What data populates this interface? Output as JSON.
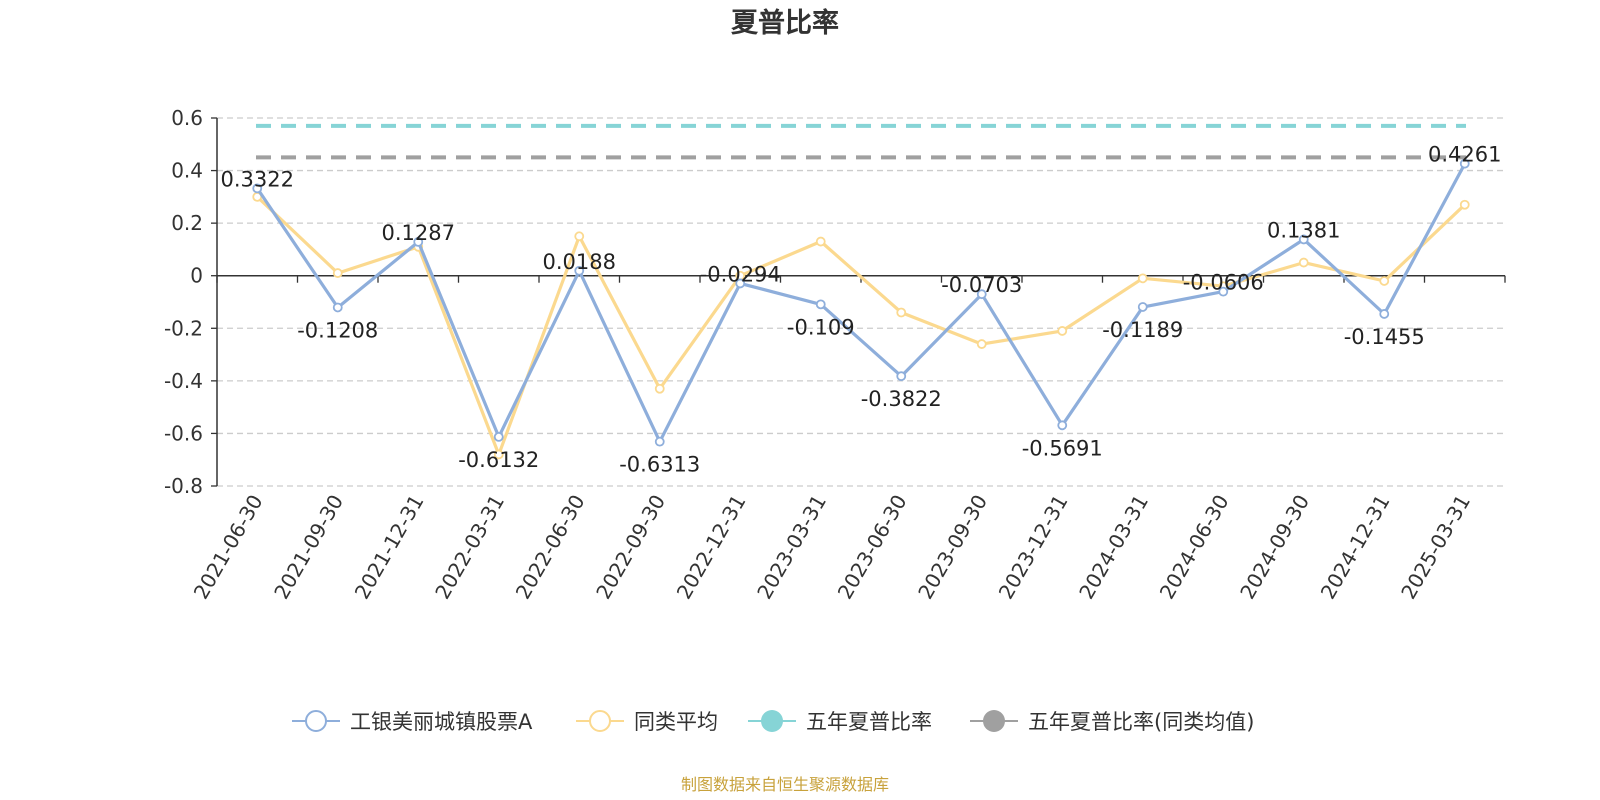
{
  "chart_data": {
    "type": "line",
    "title": "夏普比率",
    "categories": [
      "2021-06-30",
      "2021-09-30",
      "2021-12-31",
      "2022-03-31",
      "2022-06-30",
      "2022-09-30",
      "2022-12-31",
      "2023-03-31",
      "2023-06-30",
      "2023-09-30",
      "2023-12-31",
      "2024-03-31",
      "2024-06-30",
      "2024-09-30",
      "2024-12-31",
      "2025-03-31"
    ],
    "ylim": [
      -0.8,
      0.6
    ],
    "yticks": [
      0.6,
      0.4,
      0.2,
      0,
      -0.2,
      -0.4,
      -0.6,
      -0.8
    ],
    "ytick_labels": [
      "0.6",
      "0.4",
      "0.2",
      "0",
      "-0.2",
      "-0.4",
      "-0.6",
      "-0.8"
    ],
    "grid": true,
    "legend_position": "bottom",
    "series": [
      {
        "name": "工银美丽城镇股票A",
        "color": "#8eaedb",
        "values": [
          0.3322,
          -0.1208,
          0.1287,
          -0.6132,
          0.0188,
          -0.6313,
          -0.0294,
          -0.109,
          -0.3822,
          -0.0703,
          -0.5691,
          -0.1189,
          -0.0606,
          0.1381,
          -0.1455,
          0.4261
        ],
        "labels": [
          "0.3322",
          "-0.1208",
          "0.1287",
          "-0.6132",
          "0.0188",
          "-0.6313",
          "-0.0294",
          "-0.109",
          "-0.3822",
          "-0.0703",
          "-0.5691",
          "-0.1189",
          "-0.0606",
          "0.1381",
          "-0.1455",
          "0.4261"
        ]
      },
      {
        "name": "同类平均",
        "color": "#fbd98f",
        "values": [
          0.3,
          0.01,
          0.11,
          -0.68,
          0.15,
          -0.43,
          0.0,
          0.13,
          -0.14,
          -0.26,
          -0.21,
          -0.01,
          -0.04,
          0.05,
          -0.02,
          0.27
        ]
      },
      {
        "name": "五年夏普比率",
        "color": "#86d4d6",
        "constant": 0.57
      },
      {
        "name": "五年夏普比率(同类均值)",
        "color": "#a0a0a0",
        "constant": 0.45
      }
    ]
  },
  "source_text": "制图数据来自恒生聚源数据库"
}
